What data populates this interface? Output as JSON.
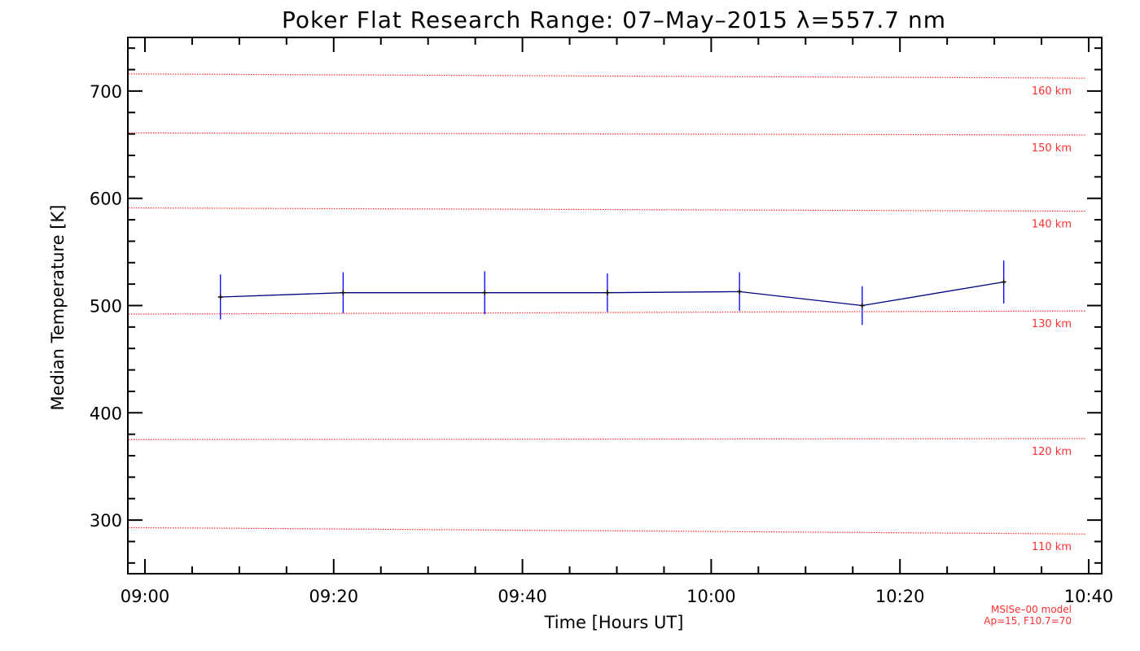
{
  "chart_data": {
    "type": "line",
    "title": "Poker Flat Research Range: 07–May–2015 λ=557.7 nm",
    "xlabel": "Time [Hours UT]",
    "ylabel": "Median Temperature [K]",
    "xlim": [
      "09:00",
      "10:40"
    ],
    "ylim": [
      250,
      750
    ],
    "x_ticks": [
      "09:00",
      "09:20",
      "09:40",
      "10:00",
      "10:20",
      "10:40"
    ],
    "y_ticks": [
      300,
      400,
      500,
      600,
      700
    ],
    "series": [
      {
        "x": [
          "09:08",
          "09:21",
          "09:36",
          "09:49",
          "10:03",
          "10:16",
          "10:31"
        ],
        "values": [
          508,
          512,
          512,
          512,
          513,
          500,
          522
        ],
        "errors": [
          21,
          19,
          20,
          18,
          18,
          18,
          20
        ],
        "color": "#000080",
        "errorbar_color": "#0000ff"
      }
    ],
    "reference_lines": [
      {
        "label": "110 km",
        "y_start": 293,
        "y_end": 287,
        "style": "dotted"
      },
      {
        "label": "120 km",
        "y_start": 375,
        "y_end": 376,
        "style": "dotted"
      },
      {
        "label": "130 km",
        "y_start": 492,
        "y_end": 495,
        "style": "dotted"
      },
      {
        "label": "140 km",
        "y_start": 591,
        "y_end": 588,
        "style": "dotted"
      },
      {
        "label": "150 km",
        "y_start": 661,
        "y_end": 659,
        "style": "dotted"
      },
      {
        "label": "160 km",
        "y_start": 716,
        "y_end": 712,
        "style": "dotted"
      }
    ],
    "reference_color": "#ff3030",
    "annotation": {
      "line1": "MSISe–00 model",
      "line2": "Ap=15, F10.7=70"
    }
  }
}
